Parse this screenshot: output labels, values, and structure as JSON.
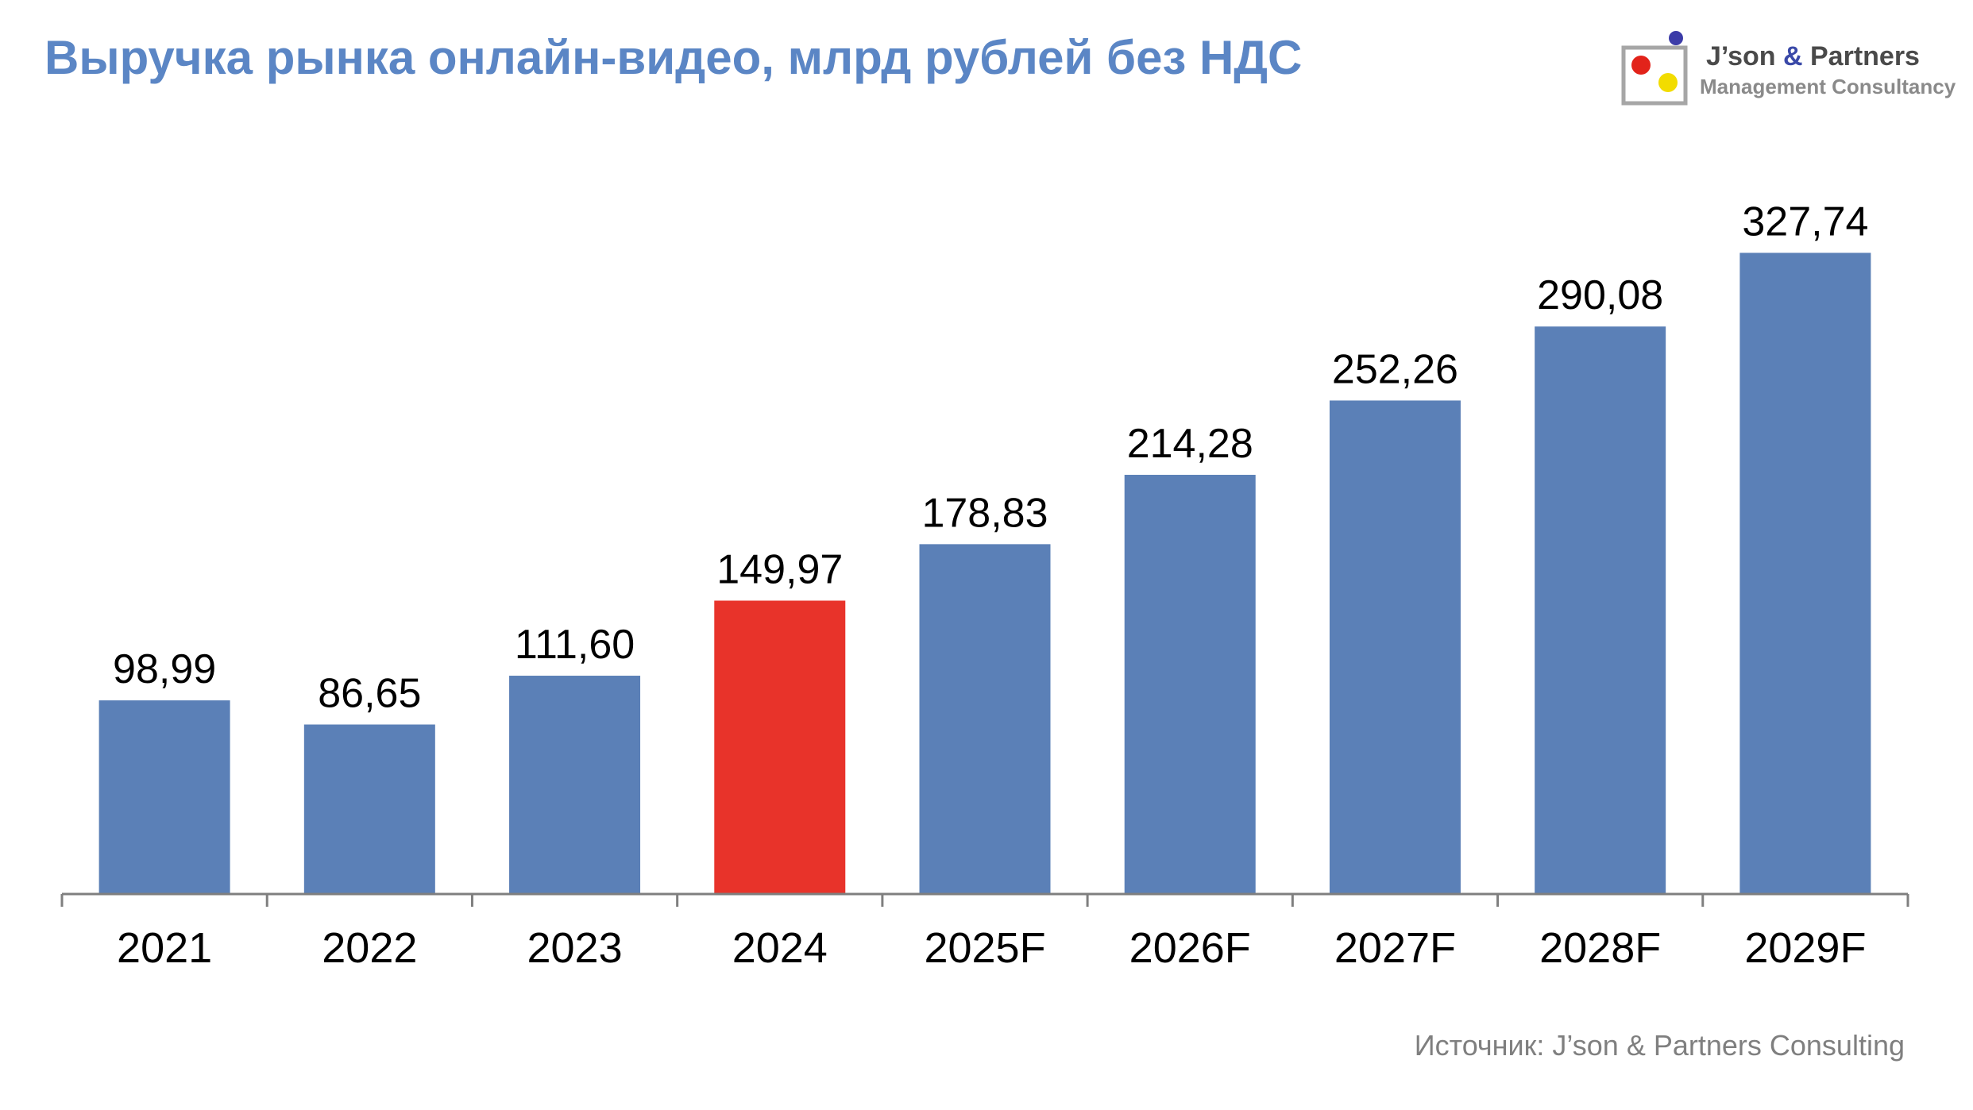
{
  "header": {
    "title": "Выручка рынка онлайн-видео, млрд рублей без НДС"
  },
  "logo": {
    "name_part1": "J’son ",
    "name_amp": "&",
    "name_part2": " Partners",
    "tagline": "Management Consultancy",
    "colors": {
      "text": "#4a4a4a",
      "amp": "#3a49a8",
      "frame": "#a6a6a6",
      "dot_red": "#e2231a",
      "dot_yellow": "#f2dc00",
      "dot_blue": "#3c3ca8"
    }
  },
  "chart_data": {
    "type": "bar",
    "title": "Выручка рынка онлайн-видео, млрд рублей без НДС",
    "categories": [
      "2021",
      "2022",
      "2023",
      "2024",
      "2025F",
      "2026F",
      "2027F",
      "2028F",
      "2029F"
    ],
    "values": [
      98.99,
      86.65,
      111.6,
      149.97,
      178.83,
      214.28,
      252.26,
      290.08,
      327.74
    ],
    "data_labels": [
      "98,99",
      "86,65",
      "111,60",
      "149,97",
      "178,83",
      "214,28",
      "252,26",
      "290,08",
      "327,74"
    ],
    "highlight_index": 3,
    "colors": {
      "bar": "#5b80b7",
      "highlight": "#e8332a",
      "axis": "#7f7f7f",
      "label": "#000000"
    },
    "ylim": [
      0,
      350
    ],
    "grid": false,
    "legend": "none",
    "xlabel": "",
    "ylabel": ""
  },
  "footer": {
    "source": "Источник: J’son & Partners Consulting"
  }
}
